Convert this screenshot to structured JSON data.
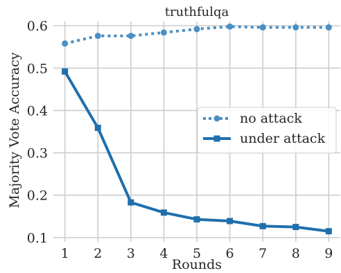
{
  "chart_data": {
    "type": "line",
    "title": "truthfulqa",
    "xlabel": "Rounds",
    "ylabel": "Majority Vote Accuracy",
    "x": [
      1,
      2,
      3,
      4,
      5,
      6,
      7,
      8,
      9
    ],
    "xticks": [
      "1",
      "2",
      "3",
      "4",
      "5",
      "6",
      "7",
      "8",
      "9"
    ],
    "yticks": [
      "0.1",
      "0.2",
      "0.3",
      "0.4",
      "0.5",
      "0.6"
    ],
    "ylim": [
      0.09,
      0.61
    ],
    "xlim": [
      0.65,
      9.35
    ],
    "grid": true,
    "legend_position": "right",
    "series": [
      {
        "name": "no attack",
        "style": "dotted",
        "marker": "circle",
        "color": "#4a8fc4",
        "values": [
          0.558,
          0.576,
          0.576,
          0.584,
          0.592,
          0.598,
          0.596,
          0.596,
          0.596
        ]
      },
      {
        "name": "under attack",
        "style": "solid",
        "marker": "square",
        "color": "#1f6fad",
        "values": [
          0.492,
          0.359,
          0.183,
          0.159,
          0.143,
          0.139,
          0.127,
          0.125,
          0.115
        ]
      }
    ]
  }
}
